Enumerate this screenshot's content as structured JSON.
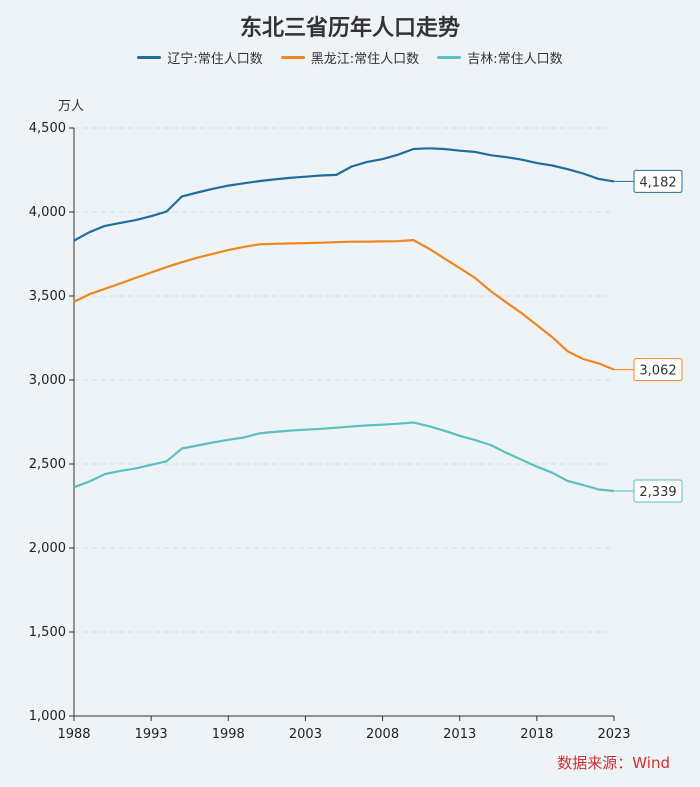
{
  "chart_data": {
    "type": "line",
    "title": "东北三省历年人口走势",
    "ylabel": "万人",
    "ylim": [
      1000,
      4500
    ],
    "yticks": [
      1000,
      1500,
      2000,
      2500,
      3000,
      3500,
      4000,
      4500
    ],
    "ytick_labels": [
      "1,000",
      "1,500",
      "2,000",
      "2,500",
      "3,000",
      "3,500",
      "4,000",
      "4,500"
    ],
    "xlim": [
      1988,
      2023
    ],
    "xticks": [
      1988,
      1993,
      1998,
      2003,
      2008,
      2013,
      2018,
      2023
    ],
    "xtick_labels": [
      "1988",
      "1993",
      "1998",
      "2003",
      "2008",
      "2013",
      "2018",
      "2023"
    ],
    "x": [
      1988,
      1989,
      1990,
      1991,
      1992,
      1993,
      1994,
      1995,
      1996,
      1997,
      1998,
      1999,
      2000,
      2001,
      2002,
      2003,
      2004,
      2005,
      2006,
      2007,
      2008,
      2009,
      2010,
      2011,
      2012,
      2013,
      2014,
      2015,
      2016,
      2017,
      2018,
      2019,
      2020,
      2021,
      2022,
      2023
    ],
    "series": [
      {
        "name": "辽宁:常住人口数",
        "color": "#1f6f9a",
        "end_label": "4,182",
        "values": [
          3830,
          3880,
          3917,
          3935,
          3952,
          3975,
          4003,
          4093,
          4116,
          4138,
          4157,
          4171,
          4184,
          4194,
          4203,
          4210,
          4217,
          4221,
          4271,
          4298,
          4315,
          4341,
          4375,
          4379,
          4375,
          4365,
          4358,
          4338,
          4327,
          4312,
          4291,
          4277,
          4255,
          4229,
          4197,
          4182
        ]
      },
      {
        "name": "黑龙江:常住人口数",
        "color": "#f0861e",
        "end_label": "3,062",
        "values": [
          3466,
          3511,
          3543,
          3575,
          3608,
          3640,
          3672,
          3701,
          3728,
          3751,
          3773,
          3792,
          3807,
          3811,
          3813,
          3815,
          3817,
          3820,
          3823,
          3824,
          3825,
          3826,
          3833,
          3782,
          3724,
          3666,
          3608,
          3529,
          3463,
          3399,
          3327,
          3255,
          3171,
          3125,
          3099,
          3062
        ]
      },
      {
        "name": "吉林:常住人口数",
        "color": "#5bc0c0",
        "end_label": "2,339",
        "values": [
          2362,
          2396,
          2440,
          2459,
          2474,
          2495,
          2516,
          2592,
          2610,
          2628,
          2644,
          2658,
          2682,
          2691,
          2699,
          2704,
          2709,
          2716,
          2723,
          2730,
          2734,
          2740,
          2747,
          2725,
          2698,
          2668,
          2642,
          2613,
          2567,
          2526,
          2484,
          2448,
          2399,
          2375,
          2348,
          2339
        ]
      }
    ],
    "source": "数据来源：Wind"
  }
}
